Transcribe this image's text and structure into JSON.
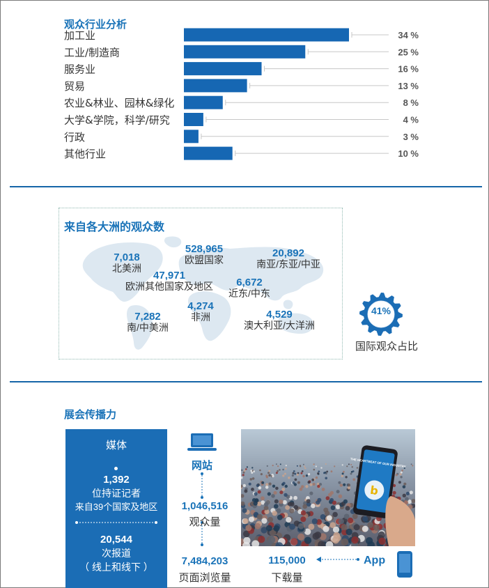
{
  "industry_section": {
    "title": "观众行业分析"
  },
  "chart_data": {
    "type": "bar",
    "orientation": "horizontal",
    "title": "观众行业分析",
    "categories": [
      "加工业",
      "工业/制造商",
      "服务业",
      "贸易",
      "农业&林业、园林&绿化",
      "大学&学院，科学/研究",
      "行政",
      "其他行业"
    ],
    "values": [
      34,
      25,
      16,
      13,
      8,
      4,
      3,
      10
    ],
    "value_labels": [
      "34 %",
      "25 %",
      "16 %",
      "13 %",
      "8 %",
      "4 %",
      "3 %",
      "10 %"
    ],
    "unit": "%",
    "xlim": [
      0,
      34
    ],
    "grid": false,
    "bar_color": "#1667b3"
  },
  "continent_section": {
    "title": "来自各大洲的观众数",
    "continents": [
      {
        "value": "7,018",
        "name": "北美洲"
      },
      {
        "value": "528,965",
        "name": "欧盟国家"
      },
      {
        "value": "20,892",
        "name": "南亚/东亚/中亚"
      },
      {
        "value": "47,971",
        "name": "欧洲其他国家及地区"
      },
      {
        "value": "6,672",
        "name": "近东/中东"
      },
      {
        "value": "7,282",
        "name": "南/中美洲"
      },
      {
        "value": "4,274",
        "name": "非洲"
      },
      {
        "value": "4,529",
        "name": "澳大利亚/大洋洲"
      }
    ],
    "international_share": "41%",
    "international_share_value": 41,
    "international_label": "国际观众占比",
    "gear_icon": "gear-icon"
  },
  "reach_section": {
    "title": "展会传播力",
    "media": {
      "title": "媒体",
      "journalists_count": "1,392",
      "journalists_label": "位持证记者",
      "countries_label": "来自39个国家及地区",
      "reports_count": "20,544",
      "reports_label": "次报道",
      "reports_note": "（ 线上和线下 ）"
    },
    "website": {
      "label": "网站",
      "visitors_count": "1,046,516",
      "visitors_label": "观众量",
      "pageviews_count": "7,484,203",
      "pageviews_label": "页面浏览量",
      "icon": "laptop-icon"
    },
    "app": {
      "label": "App",
      "downloads_count": "115,000",
      "downloads_label": "下载量",
      "icon": "smartphone-icon"
    },
    "photo_screen_text": "THE HEARTBEAT OF OUR INDUSTRY"
  },
  "colors": {
    "accent": "#1a73b8",
    "bar": "#1667b3",
    "panel": "#1b6db5",
    "divider": "#1565a8",
    "gear": "#1b6db5"
  }
}
